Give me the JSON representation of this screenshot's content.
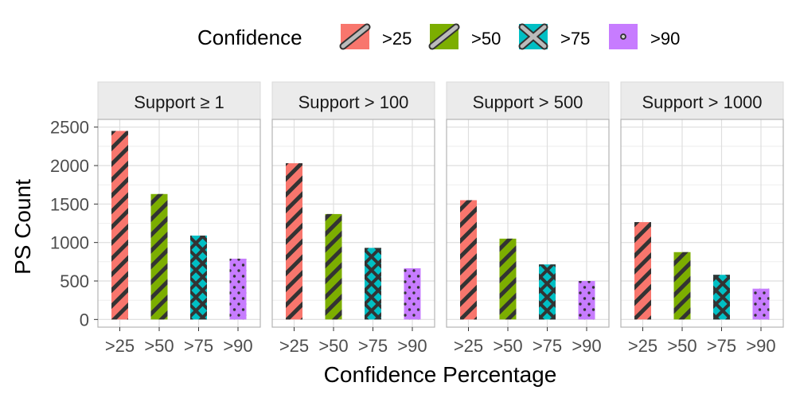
{
  "chart_data": {
    "type": "bar",
    "categories": [
      ">25",
      ">50",
      ">75",
      ">90"
    ],
    "xlabel": "Confidence Percentage",
    "ylabel": "PS Count",
    "ylim": [
      -100,
      2600
    ],
    "yticks": [
      0,
      500,
      1000,
      1500,
      2000,
      2500
    ],
    "grid": true,
    "legend": {
      "title": "Confidence",
      "placement": "top",
      "entries": [
        {
          "label": ">25",
          "color": "#F8766D",
          "pattern": "stripe"
        },
        {
          "label": ">50",
          "color": "#7CAE00",
          "pattern": "stripe"
        },
        {
          "label": ">75",
          "color": "#00BFC4",
          "pattern": "crosshatch"
        },
        {
          "label": ">90",
          "color": "#C77CFF",
          "pattern": "dots"
        }
      ]
    },
    "facets": [
      {
        "label": "Support  ≥ 1",
        "values": [
          2450,
          1630,
          1090,
          790
        ]
      },
      {
        "label": "Support  > 100",
        "values": [
          2030,
          1370,
          930,
          665
        ]
      },
      {
        "label": "Support  > 500",
        "values": [
          1550,
          1050,
          715,
          500
        ]
      },
      {
        "label": "Support  > 1000",
        "values": [
          1265,
          875,
          580,
          400
        ]
      }
    ]
  }
}
